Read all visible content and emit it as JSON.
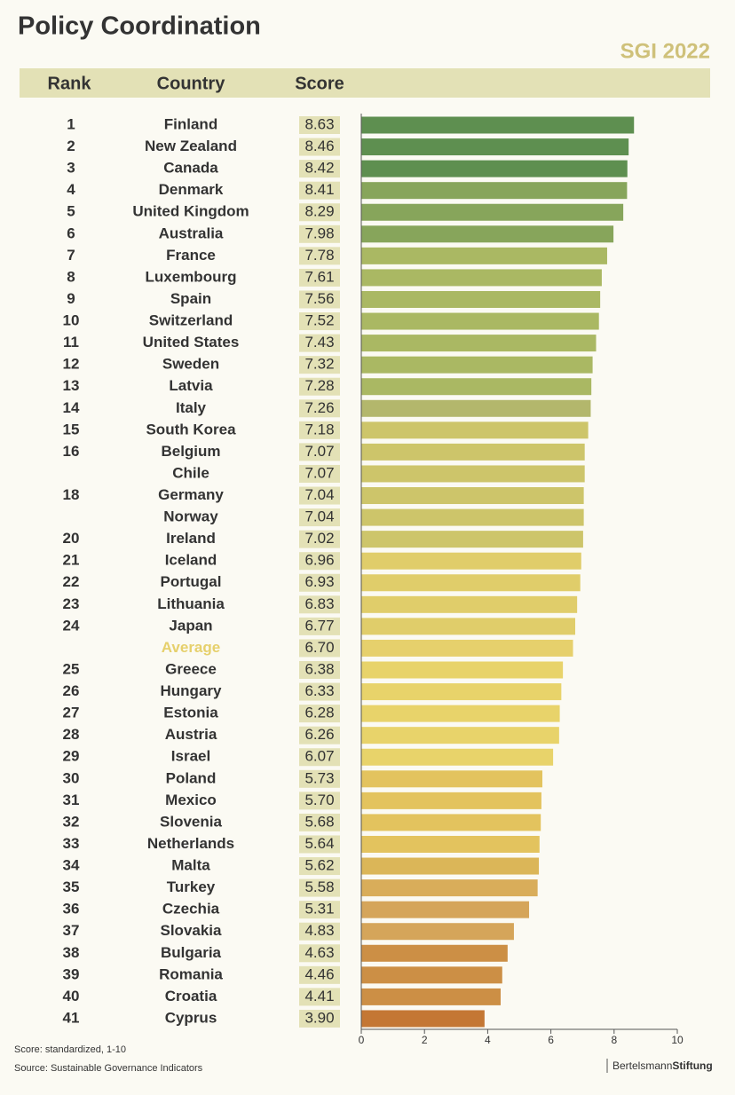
{
  "chart_data": {
    "type": "bar",
    "title": "Policy Coordination",
    "subtitle": "SGI 2022",
    "column_headers": [
      "Rank",
      "Country",
      "Score"
    ],
    "ranks": [
      1,
      2,
      3,
      4,
      5,
      6,
      7,
      8,
      9,
      10,
      11,
      12,
      13,
      14,
      15,
      16,
      null,
      18,
      null,
      20,
      21,
      22,
      23,
      24,
      null,
      25,
      26,
      27,
      28,
      29,
      30,
      31,
      32,
      33,
      34,
      35,
      36,
      37,
      38,
      39,
      40,
      41
    ],
    "categories": [
      "Finland",
      "New Zealand",
      "Canada",
      "Denmark",
      "United Kingdom",
      "Australia",
      "France",
      "Luxembourg",
      "Spain",
      "Switzerland",
      "United States",
      "Sweden",
      "Latvia",
      "Italy",
      "South Korea",
      "Belgium",
      "Chile",
      "Germany",
      "Norway",
      "Ireland",
      "Iceland",
      "Portugal",
      "Lithuania",
      "Japan",
      "Average",
      "Greece",
      "Hungary",
      "Estonia",
      "Austria",
      "Israel",
      "Poland",
      "Mexico",
      "Slovenia",
      "Netherlands",
      "Malta",
      "Turkey",
      "Czechia",
      "Slovakia",
      "Bulgaria",
      "Romania",
      "Croatia",
      "Cyprus"
    ],
    "values": [
      8.63,
      8.46,
      8.42,
      8.41,
      8.29,
      7.98,
      7.78,
      7.61,
      7.56,
      7.52,
      7.43,
      7.32,
      7.28,
      7.26,
      7.18,
      7.07,
      7.07,
      7.04,
      7.04,
      7.02,
      6.96,
      6.93,
      6.83,
      6.77,
      6.7,
      6.38,
      6.33,
      6.28,
      6.26,
      6.07,
      5.73,
      5.7,
      5.68,
      5.64,
      5.62,
      5.58,
      5.31,
      4.83,
      4.63,
      4.46,
      4.41,
      3.9
    ],
    "value_labels": [
      "8.63",
      "8.46",
      "8.42",
      "8.41",
      "8.29",
      "7.98",
      "7.78",
      "7.61",
      "7.56",
      "7.52",
      "7.43",
      "7.32",
      "7.28",
      "7.26",
      "7.18",
      "7.07",
      "7.07",
      "7.04",
      "7.04",
      "7.02",
      "6.96",
      "6.93",
      "6.83",
      "6.77",
      "6.70",
      "6.38",
      "6.33",
      "6.28",
      "6.26",
      "6.07",
      "5.73",
      "5.70",
      "5.68",
      "5.64",
      "5.62",
      "5.58",
      "5.31",
      "4.83",
      "4.63",
      "4.46",
      "4.41",
      "3.90"
    ],
    "colors": [
      "#5e8f50",
      "#5e8f50",
      "#5e8f50",
      "#87a55b",
      "#87a55b",
      "#87a55b",
      "#aab863",
      "#aab863",
      "#aab863",
      "#aab863",
      "#aab863",
      "#aab863",
      "#aab863",
      "#b3b76c",
      "#cdc56a",
      "#cdc56a",
      "#cdc56a",
      "#cdc56a",
      "#cdc56a",
      "#cdc56a",
      "#e0cd6a",
      "#e0cd6a",
      "#e0cd6a",
      "#e0cd6a",
      "#e6d06c",
      "#e8d36a",
      "#e8d36a",
      "#e8d36a",
      "#e8d36a",
      "#e8d36a",
      "#e3c35e",
      "#e3c35e",
      "#e3c35e",
      "#e3c35e",
      "#dbb658",
      "#d9ad5a",
      "#d5a55a",
      "#d5a55a",
      "#cc8f45",
      "#cc8f45",
      "#cc8f45",
      "#c47734"
    ],
    "label_colors": [
      "#333333",
      "#333333",
      "#333333",
      "#333333",
      "#333333",
      "#333333",
      "#333333",
      "#333333",
      "#333333",
      "#333333",
      "#333333",
      "#333333",
      "#333333",
      "#333333",
      "#333333",
      "#333333",
      "#333333",
      "#333333",
      "#333333",
      "#333333",
      "#333333",
      "#333333",
      "#333333",
      "#333333",
      "#e6d06c",
      "#333333",
      "#333333",
      "#333333",
      "#333333",
      "#333333",
      "#333333",
      "#333333",
      "#333333",
      "#333333",
      "#333333",
      "#333333",
      "#333333",
      "#333333",
      "#333333",
      "#333333",
      "#333333",
      "#333333"
    ],
    "xlim": [
      0,
      10
    ],
    "xticks": [
      0,
      2,
      4,
      6,
      8,
      10
    ],
    "notes": [
      "Score: standardized, 1-10",
      "Source: Sustainable Governance Indicators"
    ],
    "brand": [
      "Bertelsmann",
      "Stiftung"
    ]
  }
}
